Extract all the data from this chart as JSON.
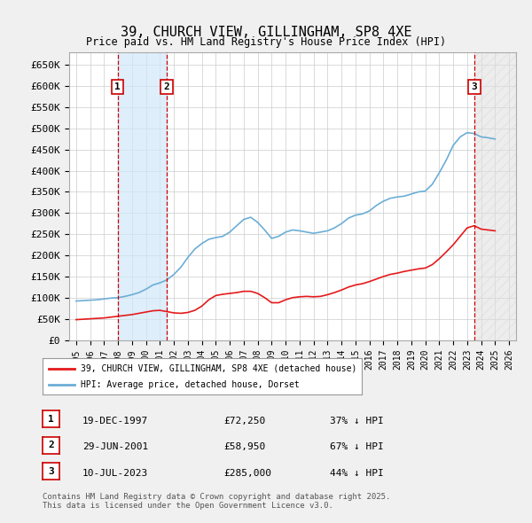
{
  "title": "39, CHURCH VIEW, GILLINGHAM, SP8 4XE",
  "subtitle": "Price paid vs. HM Land Registry's House Price Index (HPI)",
  "legend_line1": "39, CHURCH VIEW, GILLINGHAM, SP8 4XE (detached house)",
  "legend_line2": "HPI: Average price, detached house, Dorset",
  "footer": "Contains HM Land Registry data © Crown copyright and database right 2025.\nThis data is licensed under the Open Government Licence v3.0.",
  "transactions": [
    {
      "num": 1,
      "date": "19-DEC-1997",
      "price": 72250,
      "label": "37% ↓ HPI",
      "x_year": 1997.97
    },
    {
      "num": 2,
      "date": "29-JUN-2001",
      "price": 58950,
      "label": "67% ↓ HPI",
      "x_year": 2001.49
    },
    {
      "num": 3,
      "date": "10-JUL-2023",
      "price": 285000,
      "label": "44% ↓ HPI",
      "x_year": 2023.52
    }
  ],
  "hpi_line": {
    "color": "#6baed6",
    "x": [
      1995,
      1995.5,
      1996,
      1996.5,
      1997,
      1997.5,
      1998,
      1998.5,
      1999,
      1999.5,
      2000,
      2000.5,
      2001,
      2001.5,
      2002,
      2002.5,
      2003,
      2003.5,
      2004,
      2004.5,
      2005,
      2005.5,
      2006,
      2006.5,
      2007,
      2007.5,
      2008,
      2008.5,
      2009,
      2009.5,
      2010,
      2010.5,
      2011,
      2011.5,
      2012,
      2012.5,
      2013,
      2013.5,
      2014,
      2014.5,
      2015,
      2015.5,
      2016,
      2016.5,
      2017,
      2017.5,
      2018,
      2018.5,
      2019,
      2019.5,
      2020,
      2020.5,
      2021,
      2021.5,
      2022,
      2022.5,
      2023,
      2023.5,
      2024,
      2024.5,
      2025
    ],
    "y": [
      92000,
      93000,
      94000,
      95000,
      97000,
      99000,
      100000,
      103000,
      107000,
      112000,
      120000,
      130000,
      135000,
      142000,
      155000,
      172000,
      195000,
      215000,
      228000,
      238000,
      242000,
      245000,
      255000,
      270000,
      285000,
      290000,
      278000,
      260000,
      240000,
      245000,
      255000,
      260000,
      258000,
      255000,
      252000,
      255000,
      258000,
      265000,
      275000,
      288000,
      295000,
      298000,
      305000,
      318000,
      328000,
      335000,
      338000,
      340000,
      345000,
      350000,
      352000,
      368000,
      395000,
      425000,
      460000,
      480000,
      490000,
      488000,
      480000,
      478000,
      475000
    ]
  },
  "price_line": {
    "color": "#e41a1c",
    "x": [
      1995,
      1995.5,
      1996,
      1996.5,
      1997,
      1997.5,
      1998,
      1998.5,
      1999,
      1999.5,
      2000,
      2000.5,
      2001,
      2001.5,
      2002,
      2002.5,
      2003,
      2003.5,
      2004,
      2004.5,
      2005,
      2005.5,
      2006,
      2006.5,
      2007,
      2007.5,
      2008,
      2008.5,
      2009,
      2009.5,
      2010,
      2010.5,
      2011,
      2011.5,
      2012,
      2012.5,
      2013,
      2013.5,
      2014,
      2014.5,
      2015,
      2015.5,
      2016,
      2016.5,
      2017,
      2017.5,
      2018,
      2018.5,
      2019,
      2019.5,
      2020,
      2020.5,
      2021,
      2021.5,
      2022,
      2022.5,
      2023,
      2023.5,
      2024,
      2024.5,
      2025
    ],
    "y": [
      48000,
      49000,
      50000,
      51000,
      52000,
      54000,
      56000,
      58000,
      60000,
      63000,
      66000,
      69000,
      70000,
      67000,
      64000,
      63000,
      65000,
      70000,
      80000,
      95000,
      105000,
      108000,
      110000,
      112000,
      115000,
      115000,
      110000,
      100000,
      88000,
      88000,
      95000,
      100000,
      102000,
      103000,
      102000,
      103000,
      107000,
      112000,
      118000,
      125000,
      130000,
      133000,
      138000,
      144000,
      150000,
      155000,
      158000,
      162000,
      165000,
      168000,
      170000,
      178000,
      192000,
      208000,
      225000,
      245000,
      265000,
      270000,
      262000,
      260000,
      258000
    ]
  },
  "ylim": [
    0,
    680000
  ],
  "xlim": [
    1994.5,
    2026.5
  ],
  "yticks": [
    0,
    50000,
    100000,
    150000,
    200000,
    250000,
    300000,
    350000,
    400000,
    450000,
    500000,
    550000,
    600000,
    650000
  ],
  "ytick_labels": [
    "£0",
    "£50K",
    "£100K",
    "£150K",
    "£200K",
    "£250K",
    "£300K",
    "£350K",
    "£400K",
    "£450K",
    "£500K",
    "£550K",
    "£600K",
    "£650K"
  ],
  "bg_color": "#f0f0f0",
  "plot_bg_color": "#ffffff",
  "grid_color": "#cccccc",
  "shade_color": "#d0e8f8",
  "hatch_color": "#dddddd",
  "marker_box_color": "#cc0000",
  "dashed_line_color": "#cc0000"
}
